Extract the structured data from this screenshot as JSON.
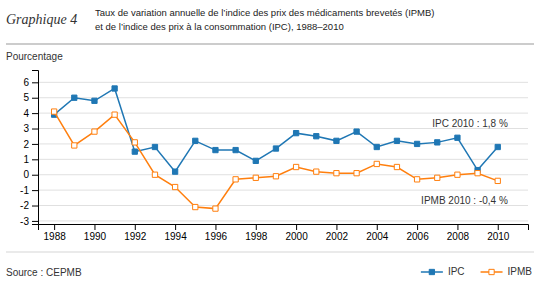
{
  "chart_data": {
    "type": "line",
    "title": "Graphique 4",
    "subtitle": [
      "Taux de variation annuelle de l’indice des prix des médicaments brevetés (IPMB)",
      "et de l’indice des prix à la consommation (IPC), 1988–2010"
    ],
    "ylabel": "Pourcentage",
    "source": "Source : CEPMB",
    "x": [
      1988,
      1989,
      1990,
      1991,
      1992,
      1993,
      1994,
      1995,
      1996,
      1997,
      1998,
      1999,
      2000,
      2001,
      2002,
      2003,
      2004,
      2005,
      2006,
      2007,
      2008,
      2009,
      2010
    ],
    "series": [
      {
        "name": "IPC",
        "values": [
          3.9,
          5.0,
          4.8,
          5.6,
          1.5,
          1.8,
          0.2,
          2.2,
          1.6,
          1.6,
          0.9,
          1.7,
          2.7,
          2.5,
          2.2,
          2.8,
          1.8,
          2.2,
          2.0,
          2.1,
          2.4,
          0.3,
          1.8
        ]
      },
      {
        "name": "IPMB",
        "values": [
          4.1,
          1.9,
          2.8,
          3.9,
          2.1,
          0.0,
          -0.8,
          -2.1,
          -2.2,
          -0.3,
          -0.2,
          -0.1,
          0.5,
          0.2,
          0.1,
          0.1,
          0.7,
          0.5,
          -0.3,
          -0.2,
          0.0,
          0.1,
          -0.4
        ]
      }
    ],
    "xlim": [
      1987.2,
      2011.5
    ],
    "xticks": [
      1988,
      1990,
      1992,
      1994,
      1996,
      1998,
      2000,
      2002,
      2004,
      2006,
      2008,
      2010
    ],
    "ylim": [
      -3.2,
      6.8
    ],
    "yticks": [
      -3,
      -2,
      -1,
      0,
      1,
      2,
      3,
      4,
      5,
      6
    ],
    "grid": true,
    "marker": "square",
    "legend": "lower right",
    "annotations": [
      {
        "text": "IPC 2010 : 1,8 %",
        "x": 2010.5,
        "y": 3.3
      },
      {
        "text": "IPMB 2010 : -0,4 %",
        "x": 2010.5,
        "y": -1.7
      }
    ]
  }
}
